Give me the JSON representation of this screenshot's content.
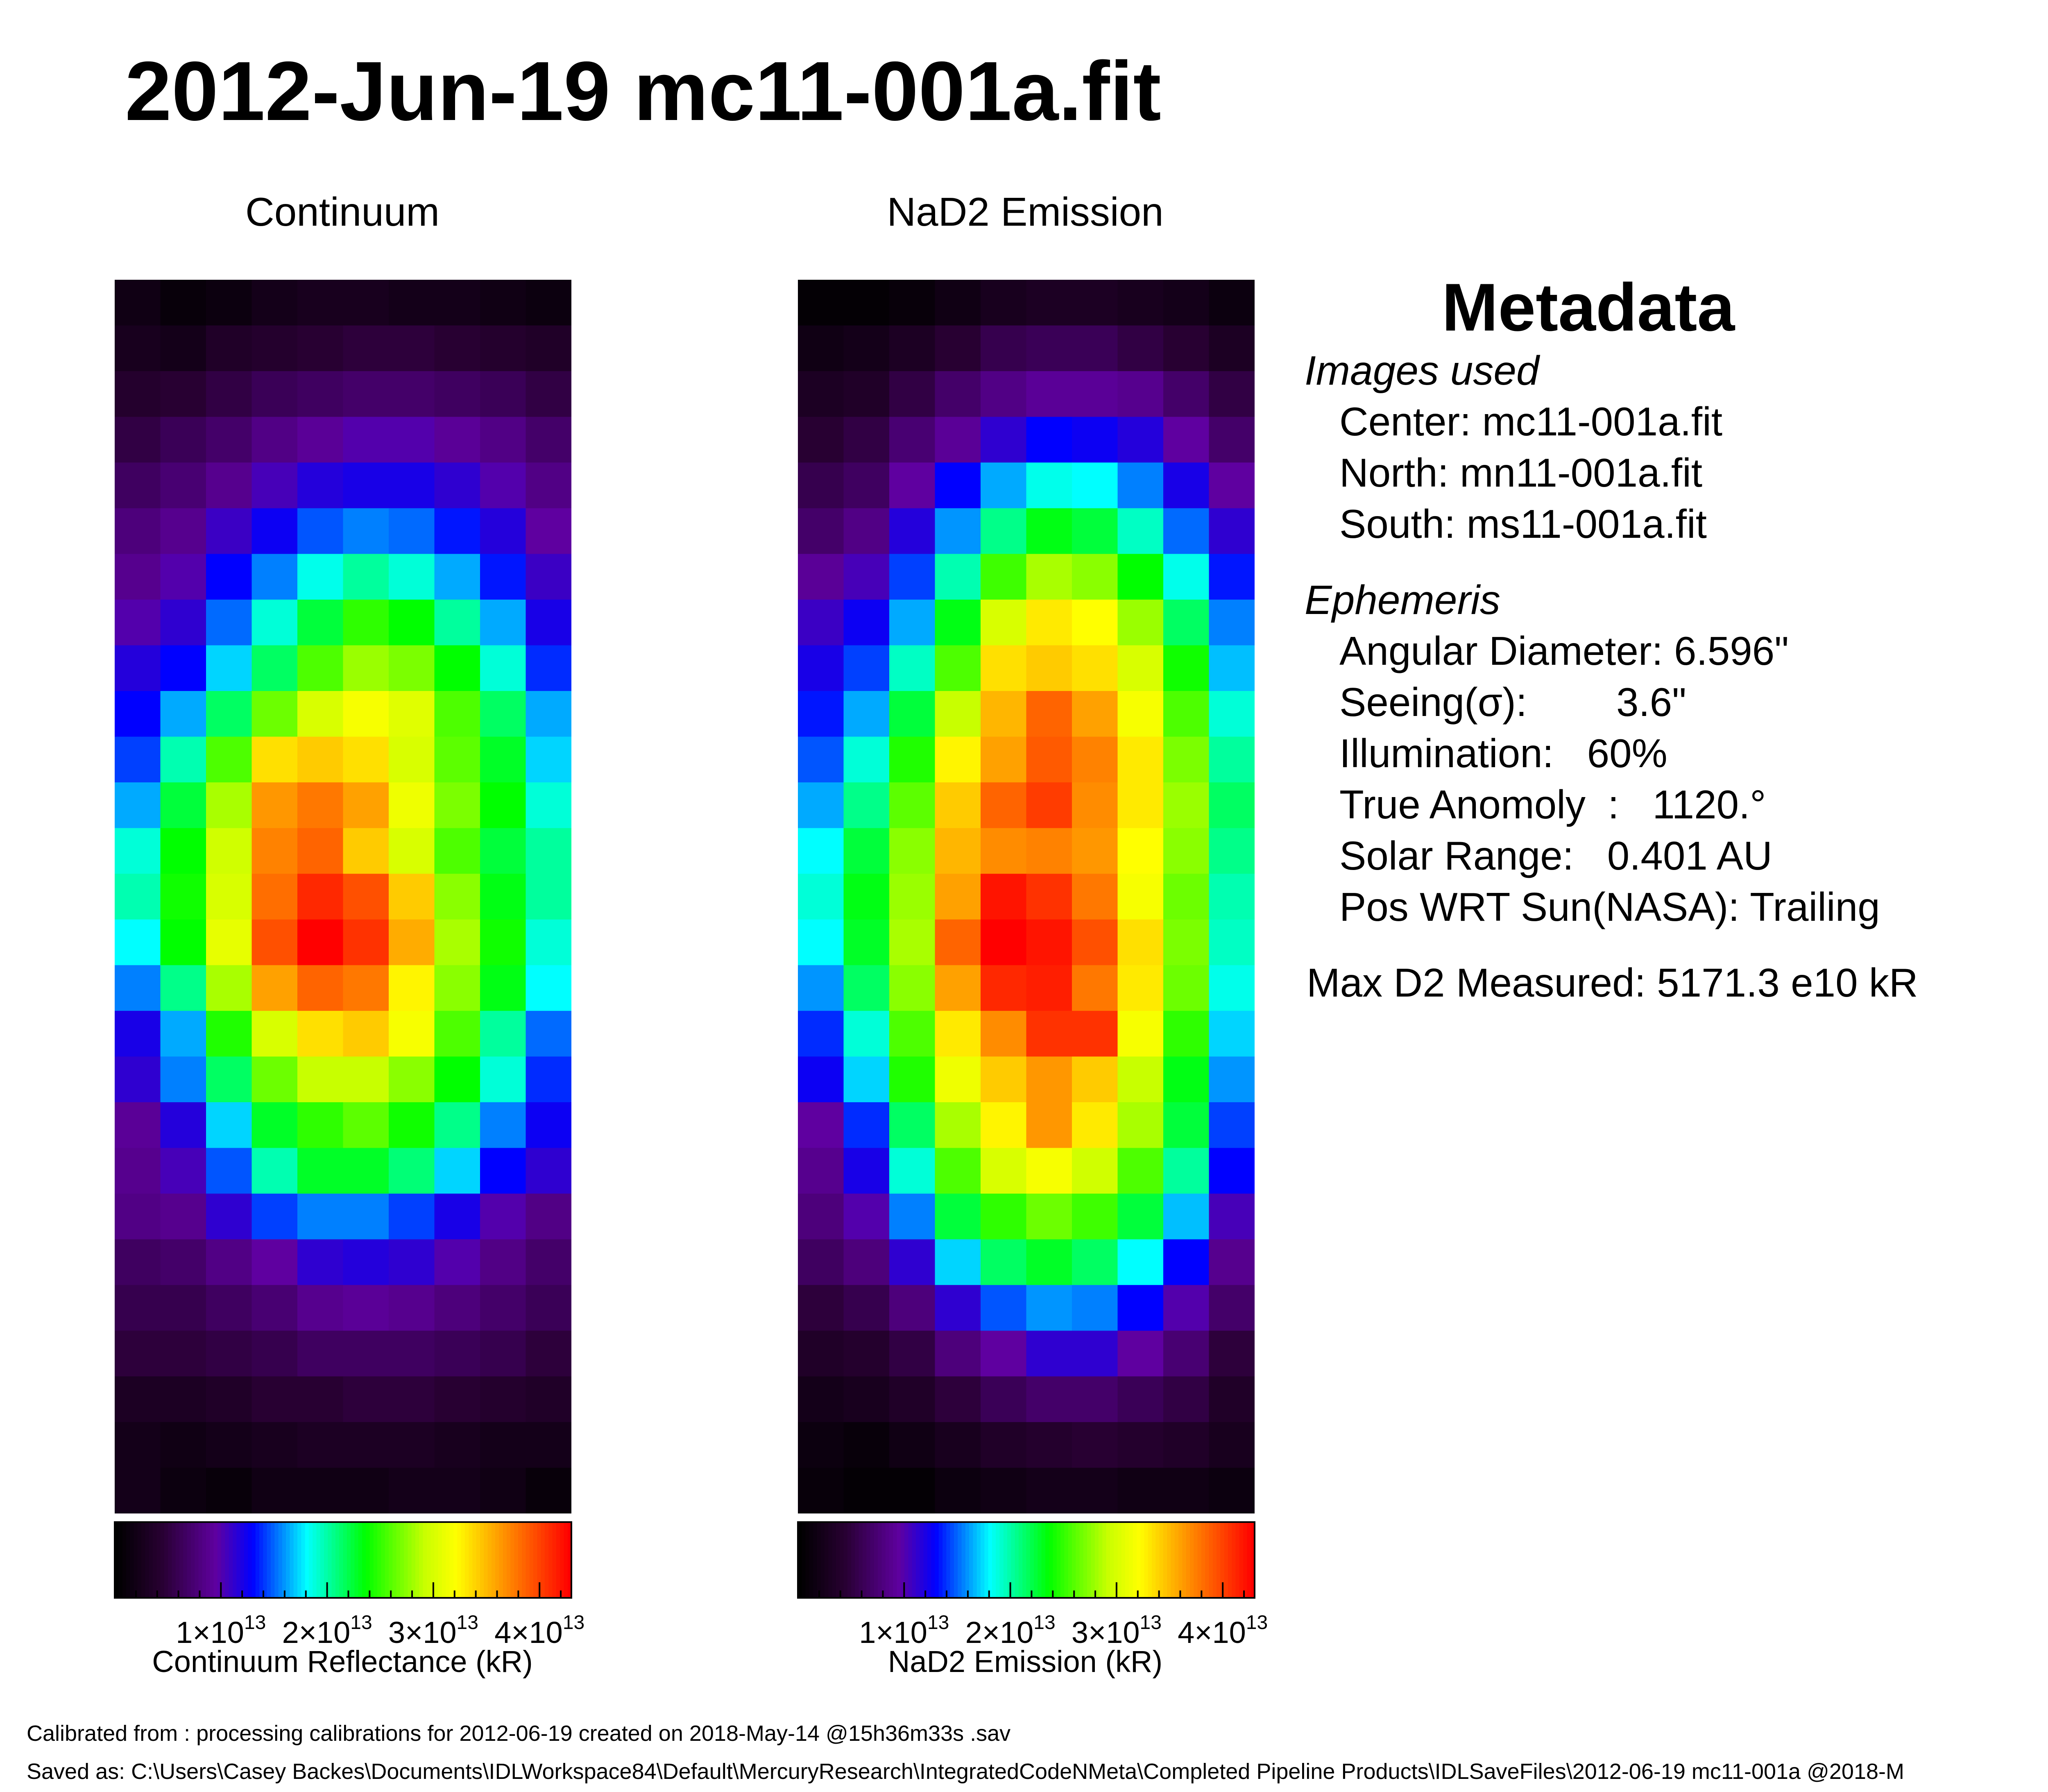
{
  "title": "2012-Jun-19 mc11-001a.fit",
  "chart_data": [
    {
      "type": "heatmap",
      "title": "Continuum",
      "colorbar_label": "Continuum Reflectance (kR)",
      "colormap": "rainbow",
      "colorbar_ticks": [
        {
          "value": 10000000000000,
          "mantissa": "1×10",
          "exponent": "13"
        },
        {
          "value": 20000000000000,
          "mantissa": "2×10",
          "exponent": "13"
        },
        {
          "value": 30000000000000,
          "mantissa": "3×10",
          "exponent": "13"
        },
        {
          "value": 40000000000000,
          "mantissa": "4×10",
          "exponent": "13"
        }
      ],
      "vmin": 0,
      "vmax": 43000000000000,
      "values": [
        [
          0.04,
          0.02,
          0.03,
          0.05,
          0.06,
          0.06,
          0.05,
          0.05,
          0.04,
          0.03
        ],
        [
          0.06,
          0.05,
          0.08,
          0.09,
          0.1,
          0.11,
          0.11,
          0.1,
          0.09,
          0.08
        ],
        [
          0.09,
          0.1,
          0.12,
          0.14,
          0.15,
          0.16,
          0.16,
          0.15,
          0.14,
          0.12
        ],
        [
          0.12,
          0.14,
          0.16,
          0.19,
          0.21,
          0.23,
          0.23,
          0.21,
          0.19,
          0.16
        ],
        [
          0.15,
          0.17,
          0.2,
          0.24,
          0.27,
          0.28,
          0.28,
          0.26,
          0.23,
          0.19
        ],
        [
          0.18,
          0.2,
          0.25,
          0.29,
          0.34,
          0.36,
          0.35,
          0.31,
          0.27,
          0.22
        ],
        [
          0.2,
          0.23,
          0.3,
          0.36,
          0.43,
          0.47,
          0.44,
          0.38,
          0.31,
          0.25
        ],
        [
          0.23,
          0.26,
          0.35,
          0.44,
          0.52,
          0.58,
          0.55,
          0.47,
          0.38,
          0.28
        ],
        [
          0.27,
          0.3,
          0.4,
          0.5,
          0.6,
          0.65,
          0.63,
          0.55,
          0.44,
          0.32
        ],
        [
          0.3,
          0.38,
          0.5,
          0.62,
          0.7,
          0.74,
          0.71,
          0.6,
          0.5,
          0.38
        ],
        [
          0.33,
          0.46,
          0.6,
          0.78,
          0.8,
          0.78,
          0.7,
          0.61,
          0.53,
          0.4
        ],
        [
          0.38,
          0.52,
          0.66,
          0.85,
          0.88,
          0.84,
          0.73,
          0.63,
          0.55,
          0.44
        ],
        [
          0.44,
          0.55,
          0.69,
          0.87,
          0.9,
          0.8,
          0.7,
          0.6,
          0.52,
          0.47
        ],
        [
          0.46,
          0.56,
          0.7,
          0.89,
          0.96,
          0.92,
          0.8,
          0.64,
          0.54,
          0.47
        ],
        [
          0.42,
          0.55,
          0.72,
          0.92,
          1.0,
          0.95,
          0.83,
          0.66,
          0.56,
          0.44
        ],
        [
          0.36,
          0.48,
          0.66,
          0.84,
          0.9,
          0.88,
          0.76,
          0.64,
          0.54,
          0.42
        ],
        [
          0.28,
          0.38,
          0.57,
          0.7,
          0.78,
          0.8,
          0.74,
          0.6,
          0.47,
          0.35
        ],
        [
          0.26,
          0.36,
          0.5,
          0.62,
          0.68,
          0.68,
          0.64,
          0.55,
          0.44,
          0.32
        ],
        [
          0.21,
          0.27,
          0.4,
          0.53,
          0.58,
          0.61,
          0.56,
          0.48,
          0.36,
          0.29
        ],
        [
          0.2,
          0.24,
          0.34,
          0.46,
          0.53,
          0.53,
          0.49,
          0.4,
          0.3,
          0.26
        ],
        [
          0.19,
          0.2,
          0.26,
          0.33,
          0.36,
          0.36,
          0.33,
          0.28,
          0.23,
          0.19
        ],
        [
          0.15,
          0.16,
          0.19,
          0.22,
          0.26,
          0.27,
          0.26,
          0.23,
          0.19,
          0.16
        ],
        [
          0.13,
          0.13,
          0.15,
          0.17,
          0.2,
          0.21,
          0.2,
          0.18,
          0.16,
          0.14
        ],
        [
          0.11,
          0.11,
          0.12,
          0.13,
          0.15,
          0.15,
          0.15,
          0.14,
          0.13,
          0.11
        ],
        [
          0.07,
          0.07,
          0.08,
          0.1,
          0.1,
          0.11,
          0.11,
          0.1,
          0.09,
          0.08
        ],
        [
          0.05,
          0.04,
          0.05,
          0.06,
          0.07,
          0.07,
          0.07,
          0.06,
          0.05,
          0.05
        ],
        [
          0.05,
          0.03,
          0.02,
          0.04,
          0.04,
          0.04,
          0.05,
          0.05,
          0.04,
          0.02
        ]
      ]
    },
    {
      "type": "heatmap",
      "title": "NaD2 Emission",
      "colorbar_label": "NaD2 Emission (kR)",
      "colormap": "rainbow",
      "colorbar_ticks": [
        {
          "value": 10000000000000,
          "mantissa": "1×10",
          "exponent": "13"
        },
        {
          "value": 20000000000000,
          "mantissa": "2×10",
          "exponent": "13"
        },
        {
          "value": 30000000000000,
          "mantissa": "3×10",
          "exponent": "13"
        },
        {
          "value": 40000000000000,
          "mantissa": "4×10",
          "exponent": "13"
        }
      ],
      "vmin": 0,
      "vmax": 43000000000000,
      "values": [
        [
          0.01,
          0.01,
          0.02,
          0.04,
          0.06,
          0.07,
          0.07,
          0.06,
          0.05,
          0.03
        ],
        [
          0.04,
          0.05,
          0.07,
          0.1,
          0.13,
          0.14,
          0.14,
          0.12,
          0.1,
          0.07
        ],
        [
          0.07,
          0.08,
          0.12,
          0.16,
          0.19,
          0.21,
          0.21,
          0.2,
          0.16,
          0.12
        ],
        [
          0.1,
          0.12,
          0.17,
          0.21,
          0.26,
          0.3,
          0.29,
          0.27,
          0.22,
          0.16
        ],
        [
          0.13,
          0.15,
          0.22,
          0.3,
          0.38,
          0.43,
          0.42,
          0.36,
          0.28,
          0.22
        ],
        [
          0.16,
          0.19,
          0.27,
          0.37,
          0.48,
          0.54,
          0.52,
          0.45,
          0.35,
          0.26
        ],
        [
          0.21,
          0.24,
          0.33,
          0.46,
          0.59,
          0.66,
          0.64,
          0.55,
          0.43,
          0.31
        ],
        [
          0.25,
          0.29,
          0.38,
          0.54,
          0.7,
          0.77,
          0.75,
          0.65,
          0.5,
          0.36
        ],
        [
          0.28,
          0.33,
          0.45,
          0.6,
          0.78,
          0.8,
          0.78,
          0.7,
          0.56,
          0.39
        ],
        [
          0.31,
          0.38,
          0.52,
          0.68,
          0.82,
          0.9,
          0.84,
          0.74,
          0.6,
          0.44
        ],
        [
          0.34,
          0.44,
          0.57,
          0.76,
          0.84,
          0.91,
          0.87,
          0.77,
          0.63,
          0.47
        ],
        [
          0.38,
          0.48,
          0.61,
          0.8,
          0.9,
          0.94,
          0.86,
          0.77,
          0.65,
          0.5
        ],
        [
          0.42,
          0.52,
          0.64,
          0.82,
          0.86,
          0.87,
          0.85,
          0.75,
          0.64,
          0.48
        ],
        [
          0.44,
          0.54,
          0.65,
          0.84,
          0.98,
          0.95,
          0.88,
          0.74,
          0.62,
          0.46
        ],
        [
          0.42,
          0.53,
          0.66,
          0.9,
          1.0,
          0.98,
          0.92,
          0.78,
          0.63,
          0.45
        ],
        [
          0.37,
          0.5,
          0.64,
          0.84,
          0.96,
          0.97,
          0.88,
          0.77,
          0.62,
          0.43
        ],
        [
          0.32,
          0.44,
          0.6,
          0.77,
          0.86,
          0.95,
          0.95,
          0.74,
          0.58,
          0.4
        ],
        [
          0.29,
          0.4,
          0.57,
          0.73,
          0.8,
          0.85,
          0.8,
          0.68,
          0.54,
          0.37
        ],
        [
          0.22,
          0.32,
          0.5,
          0.66,
          0.76,
          0.85,
          0.77,
          0.66,
          0.52,
          0.33
        ],
        [
          0.2,
          0.28,
          0.44,
          0.6,
          0.7,
          0.74,
          0.69,
          0.6,
          0.47,
          0.3
        ],
        [
          0.18,
          0.23,
          0.36,
          0.52,
          0.58,
          0.62,
          0.59,
          0.52,
          0.39,
          0.24
        ],
        [
          0.15,
          0.18,
          0.26,
          0.4,
          0.5,
          0.53,
          0.5,
          0.42,
          0.3,
          0.2
        ],
        [
          0.11,
          0.13,
          0.18,
          0.26,
          0.34,
          0.37,
          0.36,
          0.3,
          0.23,
          0.16
        ],
        [
          0.08,
          0.09,
          0.12,
          0.18,
          0.22,
          0.26,
          0.26,
          0.22,
          0.17,
          0.11
        ],
        [
          0.05,
          0.06,
          0.08,
          0.11,
          0.14,
          0.16,
          0.16,
          0.14,
          0.12,
          0.08
        ],
        [
          0.03,
          0.02,
          0.04,
          0.06,
          0.08,
          0.09,
          0.1,
          0.09,
          0.08,
          0.06
        ],
        [
          0.02,
          0.01,
          0.01,
          0.03,
          0.04,
          0.05,
          0.05,
          0.04,
          0.04,
          0.03
        ]
      ]
    }
  ],
  "metadata": {
    "heading": "Metadata",
    "images_heading": "Images used",
    "images": [
      "Center: mc11-001a.fit",
      "North: mn11-001a.fit",
      "South: ms11-001a.fit"
    ],
    "ephemeris_heading": "Ephemeris",
    "ephemeris": [
      "Angular Diameter: 6.596\"",
      "Seeing(σ):        3.6\"",
      "Illumination:   60%",
      "True Anomoly  :   1120.°",
      "Solar Range:   0.401 AU",
      "Pos WRT Sun(NASA): Trailing"
    ],
    "max_d2": "Max D2 Measured: 5171.3 e10 kR"
  },
  "footer": {
    "calibrated_from": "Calibrated from : processing calibrations for 2012-06-19 created on 2018-May-14 @15h36m33s .sav",
    "saved_as": "Saved as: C:\\Users\\Casey Backes\\Documents\\IDLWorkspace84\\Default\\MercuryResearch\\IntegratedCodeNMeta\\Completed Pipeline Products\\IDLSaveFiles\\2012-06-19 mc11-001a @2018-M"
  }
}
